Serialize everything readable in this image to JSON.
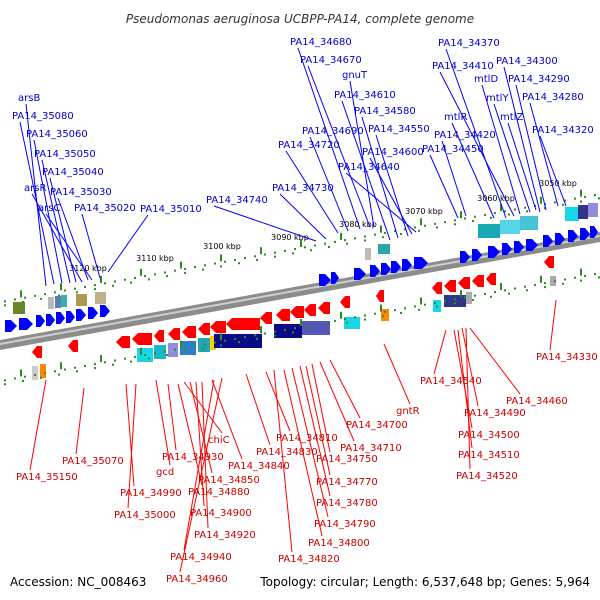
{
  "title": "Pseudomonas aeruginosa UCBPP-PA14, complete genome",
  "footer": {
    "accession": "Accession: NC_008463",
    "topology": "Topology: circular; Length: 6,537,648 bp; Genes: 5,964"
  },
  "colors": {
    "forward_gene": "#0000ff",
    "reverse_gene": "#ff0000",
    "forward_label": "#0000cc",
    "reverse_label": "#cc0000",
    "axis": "#888888",
    "tick": "#2e8b22"
  },
  "scale_labels": [
    "3050 kbp",
    "3060 kbp",
    "3070 kbp",
    "3080 kbp",
    "3090 kbp",
    "3100 kbp",
    "3110 kbp",
    "3120 kbp"
  ],
  "forward_genes": [
    "arsB",
    "PA14_35080",
    "PA14_35060",
    "PA14_35050",
    "PA14_35040",
    "arsR",
    "PA14_35030",
    "arsC",
    "PA14_35020",
    "PA14_35010",
    "PA14_34740",
    "PA14_34730",
    "PA14_34720",
    "PA14_34690",
    "PA14_34680",
    "PA14_34670",
    "gnuT",
    "PA14_34610",
    "PA14_34580",
    "PA14_34550",
    "PA14_34600",
    "PA14_34640",
    "PA14_34370",
    "PA14_34410",
    "mtlD",
    "PA14_34300",
    "PA14_34290",
    "mtlY",
    "PA14_34280",
    "mtlR",
    "mtlZ",
    "PA14_34420",
    "PA14_34320",
    "PA14_34450"
  ],
  "reverse_genes": [
    "PA14_35070",
    "PA14_35150",
    "gcd",
    "PA14_34990",
    "PA14_35000",
    "PA14_34930",
    "chiC",
    "PA14_34880",
    "PA14_34850",
    "PA14_34840",
    "PA14_34900",
    "PA14_34920",
    "PA14_34940",
    "PA14_34960",
    "PA14_34830",
    "PA14_34810",
    "PA14_34820",
    "PA14_34800",
    "PA14_34790",
    "PA14_34780",
    "PA14_34770",
    "PA14_34750",
    "PA14_34710",
    "PA14_34700",
    "gntR",
    "PA14_34540",
    "PA14_34460",
    "PA14_34490",
    "PA14_34500",
    "PA14_34510",
    "PA14_34520",
    "PA14_34330"
  ]
}
